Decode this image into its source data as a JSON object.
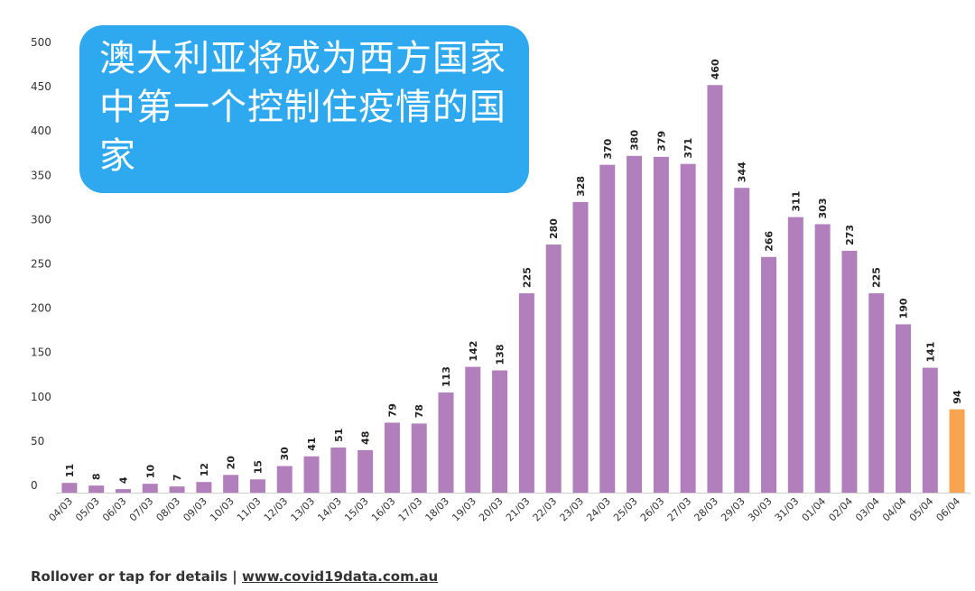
{
  "title": "澳大利亚将成为西方国家中第一个控制住疫情的国家",
  "footer": {
    "text": "Rollover or tap for details | ",
    "link": "www.covid19data.com.au"
  },
  "colors": {
    "bar": "#b27fbd",
    "highlight": "#f9a451",
    "title_bg": "#2ea9ef"
  },
  "chart_data": {
    "type": "bar",
    "categories": [
      "04/03",
      "05/03",
      "06/03",
      "07/03",
      "08/03",
      "09/03",
      "10/03",
      "11/03",
      "12/03",
      "13/03",
      "14/03",
      "15/03",
      "16/03",
      "17/03",
      "18/03",
      "19/03",
      "20/03",
      "21/03",
      "22/03",
      "23/03",
      "24/03",
      "25/03",
      "26/03",
      "27/03",
      "28/03",
      "29/03",
      "30/03",
      "31/03",
      "01/04",
      "02/04",
      "03/04",
      "04/04",
      "05/04",
      "06/04"
    ],
    "values": [
      11,
      8,
      4,
      10,
      7,
      12,
      20,
      15,
      30,
      41,
      51,
      48,
      79,
      78,
      113,
      142,
      138,
      225,
      280,
      328,
      370,
      380,
      379,
      371,
      460,
      344,
      266,
      311,
      303,
      273,
      225,
      190,
      141,
      94
    ],
    "highlight_index": 33,
    "ylim": [
      0,
      500
    ],
    "yticks": [
      0,
      50,
      100,
      150,
      200,
      250,
      300,
      350,
      400,
      450,
      500
    ],
    "grid": false,
    "legend": "none"
  }
}
